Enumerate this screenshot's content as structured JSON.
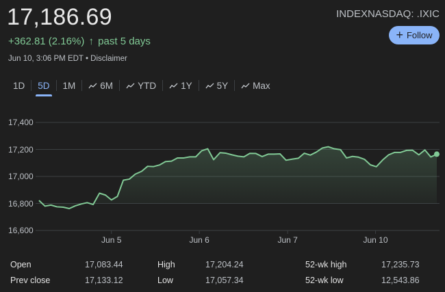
{
  "header": {
    "price": "17,186.69",
    "change": "+362.81 (2.16%)",
    "change_arrow": "↑",
    "change_period": "past 5 days",
    "timestamp": "Jun 10, 3:06 PM EDT",
    "separator": "•",
    "disclaimer": "Disclaimer",
    "ticker": "INDEXNASDAQ: .IXIC",
    "follow_label": "Follow",
    "follow_icon": "+"
  },
  "tabs": [
    {
      "label": "1D",
      "icon": false,
      "active": false
    },
    {
      "label": "5D",
      "icon": false,
      "active": true
    },
    {
      "label": "1M",
      "icon": false,
      "active": false
    },
    {
      "label": "6M",
      "icon": true,
      "active": false
    },
    {
      "label": "YTD",
      "icon": true,
      "active": false
    },
    {
      "label": "1Y",
      "icon": true,
      "active": false
    },
    {
      "label": "5Y",
      "icon": true,
      "active": false
    },
    {
      "label": "Max",
      "icon": true,
      "active": false
    }
  ],
  "colors": {
    "background": "#1f1f1f",
    "line": "#81c995",
    "accent": "#8ab4f8",
    "gridline": "#3c4043",
    "text_secondary": "#bdc1c6"
  },
  "chart_data": {
    "type": "area",
    "title": "",
    "xlabel": "",
    "ylabel": "",
    "ylim": [
      16600,
      17400
    ],
    "yticks": [
      "17,400",
      "17,200",
      "17,000",
      "16,800",
      "16,600"
    ],
    "ytick_values": [
      17400,
      17200,
      17000,
      16800,
      16600
    ],
    "xticks": [
      "Jun 5",
      "Jun 6",
      "Jun 7",
      "Jun 10"
    ],
    "xtick_positions": [
      0.182,
      0.403,
      0.625,
      0.846
    ],
    "grid": true,
    "legend": "none",
    "series": [
      {
        "name": ".IXIC",
        "x": [
          0.0,
          0.015,
          0.03,
          0.045,
          0.061,
          0.076,
          0.091,
          0.106,
          0.121,
          0.136,
          0.152,
          0.167,
          0.182,
          0.197,
          0.212,
          0.227,
          0.242,
          0.258,
          0.273,
          0.288,
          0.303,
          0.318,
          0.333,
          0.348,
          0.364,
          0.379,
          0.394,
          0.409,
          0.424,
          0.439,
          0.455,
          0.47,
          0.485,
          0.5,
          0.515,
          0.53,
          0.545,
          0.561,
          0.576,
          0.591,
          0.606,
          0.621,
          0.636,
          0.652,
          0.667,
          0.682,
          0.697,
          0.712,
          0.727,
          0.742,
          0.758,
          0.773,
          0.788,
          0.803,
          0.818,
          0.833,
          0.848,
          0.864,
          0.879,
          0.894,
          0.909,
          0.924,
          0.939,
          0.955,
          0.97,
          0.985,
          1.0
        ],
        "values": [
          16822,
          16780,
          16788,
          16775,
          16772,
          16762,
          16782,
          16796,
          16806,
          16792,
          16876,
          16862,
          16826,
          16852,
          16972,
          16980,
          17017,
          17038,
          17075,
          17073,
          17085,
          17110,
          17113,
          17137,
          17137,
          17145,
          17145,
          17190,
          17205,
          17124,
          17176,
          17172,
          17160,
          17150,
          17145,
          17171,
          17170,
          17147,
          17165,
          17165,
          17167,
          17120,
          17128,
          17135,
          17172,
          17158,
          17180,
          17210,
          17220,
          17205,
          17198,
          17137,
          17148,
          17143,
          17127,
          17086,
          17072,
          17122,
          17160,
          17178,
          17178,
          17193,
          17194,
          17160,
          17196,
          17144,
          17165
        ],
        "last_value": 17186.69
      }
    ]
  },
  "stats": [
    {
      "label": "Open",
      "value": "17,083.44"
    },
    {
      "label": "Prev close",
      "value": "17,133.12"
    },
    {
      "label": "High",
      "value": "17,204.24"
    },
    {
      "label": "Low",
      "value": "17,057.34"
    },
    {
      "label": "52-wk high",
      "value": "17,235.73"
    },
    {
      "label": "52-wk low",
      "value": "12,543.86"
    }
  ]
}
